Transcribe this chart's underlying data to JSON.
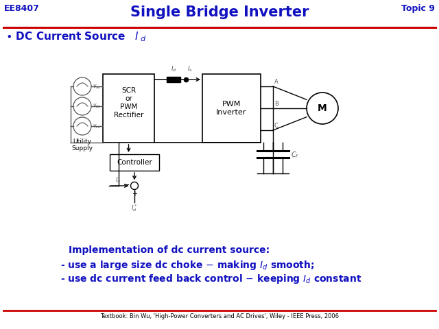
{
  "title": "Single Bridge Inverter",
  "header_left": "EE8407",
  "header_right": "Topic 9",
  "impl_line1": "Implementation of dc current source:",
  "impl_line2a": "- use a large size dc choke – making ",
  "impl_line2d": " smooth;",
  "impl_line3a": "- use dc current feed back control – keeping ",
  "impl_line3d": " constant",
  "footer": "Textbook: Bin Wu, 'High-Power Converters and AC Drives', Wiley - IEEE Press, 2006",
  "title_color": "#1010c0",
  "header_color": "#1010c0",
  "bullet_color": "#1010c0",
  "red_line_color": "#cc0000",
  "impl_color": "#1010c0",
  "body_bg": "#ffffff"
}
